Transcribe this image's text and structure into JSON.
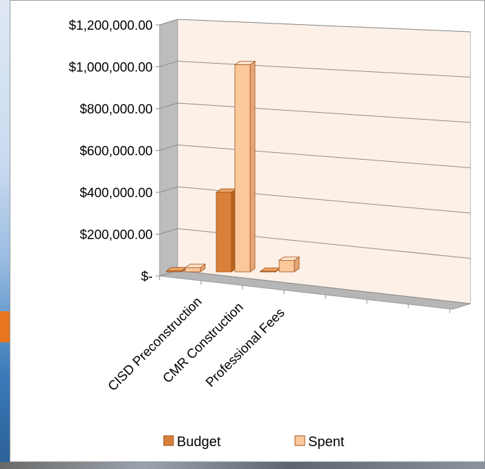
{
  "chart_data": {
    "type": "bar",
    "categories": [
      "CISD Preconstruction",
      "CMR Construction",
      "Professional Fees"
    ],
    "series": [
      {
        "name": "Budget",
        "values": [
          5000,
          380000,
          3000
        ]
      },
      {
        "name": "Spent",
        "values": [
          20000,
          990000,
          55000
        ]
      }
    ],
    "y_ticks": [
      "$1,200,000.00",
      "$1,000,000.00",
      "$800,000.00",
      "$600,000.00",
      "$400,000.00",
      "$200,000.00",
      "$-"
    ],
    "ylim": [
      0,
      1200000
    ],
    "grid": true,
    "legend": "bottom",
    "colors": {
      "budget": "#d9803a",
      "spent": "#fbc89c",
      "wall": "#fdf0e6"
    }
  }
}
